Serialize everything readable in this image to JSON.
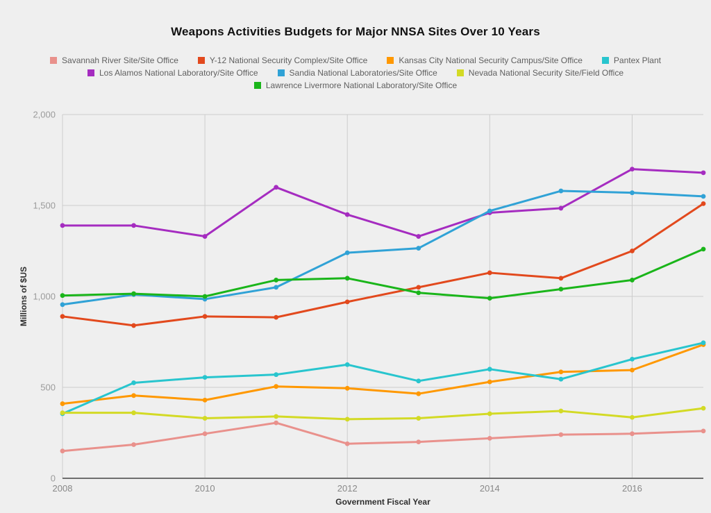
{
  "title": "Weapons Activities Budgets for Major NNSA Sites Over 10 Years",
  "chart_data": {
    "type": "line",
    "title": "Weapons Activities Budgets for Major NNSA Sites Over 10 Years",
    "xlabel": "Government Fiscal Year",
    "ylabel": "Millions of $US",
    "x": [
      2008,
      2009,
      2010,
      2011,
      2012,
      2013,
      2014,
      2015,
      2016,
      2017
    ],
    "xticks": [
      2008,
      2010,
      2012,
      2014,
      2016
    ],
    "xtick_labels": [
      "2008",
      "2010",
      "2012",
      "2014",
      "2016"
    ],
    "yticks": [
      0,
      500,
      1000,
      1500,
      2000
    ],
    "ytick_labels": [
      "0",
      "500",
      "1,000",
      "1,500",
      "2,000"
    ],
    "ylim": [
      0,
      2000
    ],
    "xlim": [
      2008,
      2017
    ],
    "grid": true,
    "legend_position": "top",
    "legend_rows": [
      [
        0,
        1,
        2,
        3
      ],
      [
        4,
        5,
        6
      ],
      [
        7
      ]
    ],
    "series": [
      {
        "name": "Savannah River Site/Site Office",
        "color": "#e9918c",
        "values": [
          150,
          185,
          245,
          305,
          190,
          200,
          220,
          240,
          245,
          260
        ]
      },
      {
        "name": "Y-12 National Security Complex/Site Office",
        "color": "#e2491d",
        "values": [
          890,
          840,
          890,
          885,
          970,
          1050,
          1130,
          1100,
          1250,
          1510
        ]
      },
      {
        "name": "Kansas City National Security Campus/Site Office",
        "color": "#ff9800",
        "values": [
          410,
          455,
          430,
          505,
          495,
          465,
          530,
          585,
          595,
          735
        ]
      },
      {
        "name": "Pantex Plant",
        "color": "#28c5ce",
        "values": [
          355,
          525,
          555,
          570,
          625,
          535,
          600,
          545,
          655,
          745
        ]
      },
      {
        "name": "Los Alamos National Laboratory/Site Office",
        "color": "#a52cc0",
        "values": [
          1390,
          1390,
          1330,
          1600,
          1450,
          1330,
          1460,
          1485,
          1700,
          1680
        ]
      },
      {
        "name": "Sandia National Laboratories/Site Office",
        "color": "#30a2d6",
        "values": [
          955,
          1010,
          985,
          1050,
          1240,
          1265,
          1470,
          1580,
          1570,
          1550
        ]
      },
      {
        "name": "Nevada National Security Site/Field Office",
        "color": "#d3da25",
        "values": [
          360,
          360,
          330,
          340,
          325,
          330,
          355,
          370,
          335,
          385
        ]
      },
      {
        "name": "Lawrence Livermore National Laboratory/Site Office",
        "color": "#1ab51a",
        "values": [
          1005,
          1015,
          1000,
          1090,
          1100,
          1020,
          990,
          1040,
          1090,
          1260
        ]
      }
    ]
  },
  "colors": {
    "background": "#efefef",
    "gridline": "#cccccc",
    "axis_line": "#6e6e6e",
    "title_text": "#111111",
    "legend_text": "#5f5f5f",
    "tick_text": "#9b9b9b"
  }
}
